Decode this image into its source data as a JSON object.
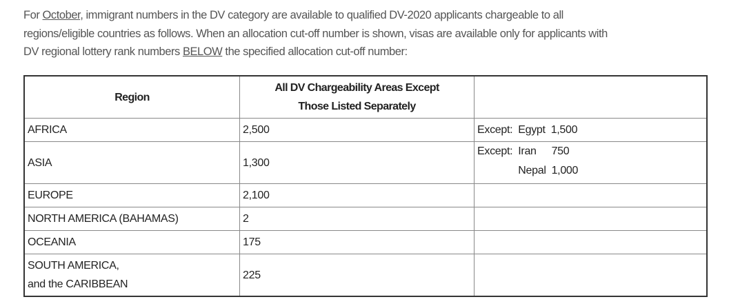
{
  "intro": {
    "line1": {
      "pre": "For ",
      "link": "October",
      "post": ", immigrant numbers in the DV category are available to qualified DV-2020 applicants chargeable to all"
    },
    "line2": "regions/eligible countries as follows. When an allocation cut-off number is shown, visas are available only for applicants with",
    "line3": {
      "pre": "DV regional lottery rank numbers ",
      "emph": "BELOW",
      "post": " the specified allocation cut-off number:"
    }
  },
  "table": {
    "headers": [
      "Region",
      "All DV Chargeability Areas Except",
      "Those Listed Separately",
      ""
    ],
    "rows": [
      {
        "region": "AFRICA",
        "value": "2,500",
        "exceptions": [
          {
            "label": "Except:",
            "country": "Egypt",
            "value": "1,500"
          }
        ]
      },
      {
        "region": "ASIA",
        "value": "1,300",
        "exceptions": [
          {
            "label": "Except:",
            "country": "Iran",
            "value": "750"
          },
          {
            "label": "",
            "country": "Nepal",
            "value": "1,000"
          }
        ]
      },
      {
        "region": "EUROPE",
        "value": "2,100",
        "exceptions": []
      },
      {
        "region": "NORTH AMERICA (BAHAMAS)",
        "value": "2",
        "exceptions": []
      },
      {
        "region": "OCEANIA",
        "value": "175",
        "exceptions": []
      },
      {
        "region": "SOUTH AMERICA,",
        "region_line2": "and the CARIBBEAN",
        "value": "225",
        "exceptions": []
      }
    ]
  }
}
